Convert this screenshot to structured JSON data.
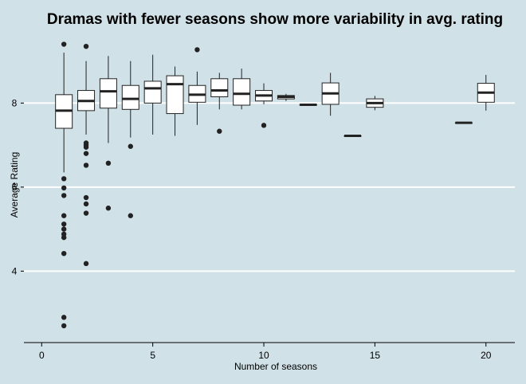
{
  "chart_data": {
    "type": "boxplot",
    "title": "Dramas with fewer seasons show more variability in avg. rating",
    "xlabel": "Number of seasons",
    "ylabel": "Average Rating",
    "xlim": [
      -0.8,
      21.3
    ],
    "ylim": [
      2.3,
      9.6
    ],
    "x_ticks": [
      0,
      5,
      10,
      15,
      20
    ],
    "y_ticks": [
      4,
      6,
      8
    ],
    "grid": "horizontal major lines",
    "colors": {
      "background": "#d0e1e7",
      "box_fill": "#ffffff",
      "line": "#222222",
      "grid": "#ffffff"
    },
    "boxes": [
      {
        "seasons": 1,
        "whisker_low": 6.35,
        "q1": 7.4,
        "median": 7.82,
        "q3": 8.2,
        "whisker_high": 9.2,
        "outliers": [
          9.4,
          6.2,
          5.98,
          5.8,
          5.32,
          5.12,
          5.0,
          4.88,
          4.8,
          4.42,
          2.9,
          2.7
        ]
      },
      {
        "seasons": 2,
        "whisker_low": 7.25,
        "q1": 7.82,
        "median": 8.05,
        "q3": 8.3,
        "whisker_high": 9.0,
        "outliers": [
          9.35,
          7.05,
          7.0,
          6.95,
          6.8,
          6.52,
          5.75,
          5.6,
          5.38,
          4.18
        ]
      },
      {
        "seasons": 3,
        "whisker_low": 7.05,
        "q1": 7.88,
        "median": 8.28,
        "q3": 8.58,
        "whisker_high": 9.12,
        "outliers": [
          6.57,
          5.5
        ]
      },
      {
        "seasons": 4,
        "whisker_low": 7.18,
        "q1": 7.85,
        "median": 8.1,
        "q3": 8.42,
        "whisker_high": 9.0,
        "outliers": [
          6.97,
          5.32
        ]
      },
      {
        "seasons": 5,
        "whisker_low": 7.25,
        "q1": 8.0,
        "median": 8.35,
        "q3": 8.52,
        "whisker_high": 9.15,
        "outliers": []
      },
      {
        "seasons": 6,
        "whisker_low": 7.22,
        "q1": 7.75,
        "median": 8.45,
        "q3": 8.65,
        "whisker_high": 8.87,
        "outliers": []
      },
      {
        "seasons": 7,
        "whisker_low": 7.48,
        "q1": 8.02,
        "median": 8.2,
        "q3": 8.42,
        "whisker_high": 8.75,
        "outliers": [
          9.27
        ]
      },
      {
        "seasons": 8,
        "whisker_low": 7.85,
        "q1": 8.15,
        "median": 8.3,
        "q3": 8.58,
        "whisker_high": 8.72,
        "outliers": [
          7.33
        ]
      },
      {
        "seasons": 9,
        "whisker_low": 7.85,
        "q1": 7.95,
        "median": 8.22,
        "q3": 8.58,
        "whisker_high": 8.82,
        "outliers": []
      },
      {
        "seasons": 10,
        "whisker_low": 7.97,
        "q1": 8.05,
        "median": 8.18,
        "q3": 8.3,
        "whisker_high": 8.47,
        "outliers": [
          7.47
        ]
      },
      {
        "seasons": 11,
        "whisker_low": 8.05,
        "q1": 8.1,
        "median": 8.15,
        "q3": 8.18,
        "whisker_high": 8.22,
        "outliers": []
      },
      {
        "seasons": 12,
        "whisker_low": 7.95,
        "q1": 7.95,
        "median": 7.96,
        "q3": 7.97,
        "whisker_high": 7.97,
        "outliers": []
      },
      {
        "seasons": 13,
        "whisker_low": 7.7,
        "q1": 7.97,
        "median": 8.23,
        "q3": 8.48,
        "whisker_high": 8.72,
        "outliers": []
      },
      {
        "seasons": 14,
        "whisker_low": 7.22,
        "q1": 7.22,
        "median": 7.22,
        "q3": 7.22,
        "whisker_high": 7.22,
        "outliers": []
      },
      {
        "seasons": 15,
        "whisker_low": 7.83,
        "q1": 7.9,
        "median": 8.0,
        "q3": 8.1,
        "whisker_high": 8.17,
        "outliers": []
      },
      {
        "seasons": 19,
        "whisker_low": 7.53,
        "q1": 7.53,
        "median": 7.53,
        "q3": 7.53,
        "whisker_high": 7.53,
        "outliers": []
      },
      {
        "seasons": 20,
        "whisker_low": 7.82,
        "q1": 8.02,
        "median": 8.25,
        "q3": 8.47,
        "whisker_high": 8.67,
        "outliers": []
      }
    ]
  }
}
